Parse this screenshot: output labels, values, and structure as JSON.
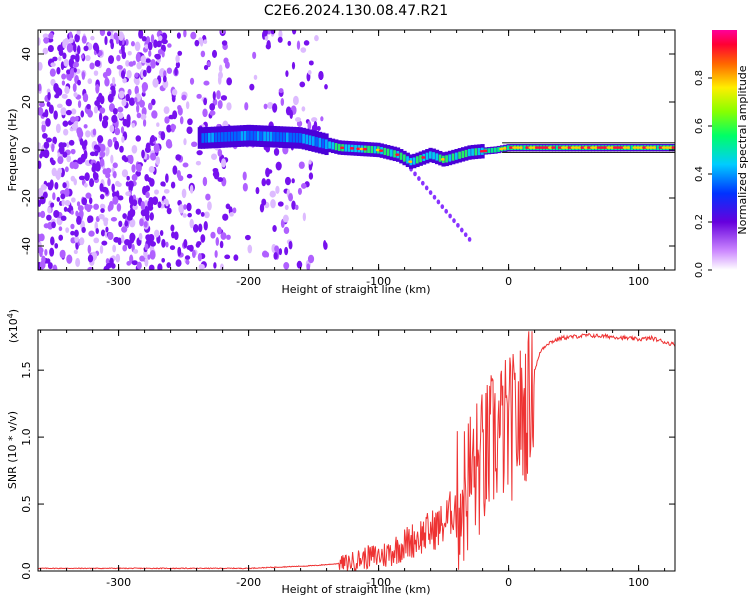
{
  "figure": {
    "title": "C2E6.2024.130.08.47.R21"
  },
  "chart_data": [
    {
      "type": "heatmap",
      "title": "C2E6.2024.130.08.47.R21",
      "xlabel": "Height of straight line (km)",
      "ylabel": "Frequency (Hz)",
      "xlim": [
        -362,
        128
      ],
      "ylim": [
        -50,
        50
      ],
      "xticks": [
        -300,
        -200,
        -100,
        0,
        100
      ],
      "xtick_labels": [
        "-300",
        "-200",
        "-100",
        "0",
        "100"
      ],
      "yticks": [
        -40,
        -20,
        0,
        20,
        40
      ],
      "ytick_labels": [
        "-40",
        "-20",
        "0",
        "20",
        "40"
      ],
      "colorbar": {
        "label": "Normalized spectral amplitude",
        "range": [
          0,
          1
        ],
        "ticks": [
          0,
          0.2,
          0.4,
          0.6,
          0.8
        ],
        "tick_labels": [
          "0.0",
          "0.2",
          "0.4",
          "0.6",
          "0.8"
        ]
      },
      "band_center_hz": [
        {
          "x": -235,
          "f": 5
        },
        {
          "x": -200,
          "f": 6
        },
        {
          "x": -160,
          "f": 5
        },
        {
          "x": -130,
          "f": 1
        },
        {
          "x": -100,
          "f": 0
        },
        {
          "x": -85,
          "f": -2
        },
        {
          "x": -75,
          "f": -5
        },
        {
          "x": -60,
          "f": -2
        },
        {
          "x": -50,
          "f": -4
        },
        {
          "x": -30,
          "f": -1
        },
        {
          "x": -10,
          "f": 0
        },
        {
          "x": 0,
          "f": 1
        },
        {
          "x": 128,
          "f": 1
        }
      ],
      "noise_region_x": [
        -362,
        -140
      ]
    },
    {
      "type": "line",
      "xlabel": "Height of straight line (km)",
      "ylabel": "SNR (10 * v/v)",
      "y_multiplier": "(x10",
      "y_multiplier_exp": "4",
      "y_multiplier_close": ")",
      "xlim": [
        -362,
        128
      ],
      "ylim": [
        0,
        1.8
      ],
      "xticks": [
        -300,
        -200,
        -100,
        0,
        100
      ],
      "xtick_labels": [
        "-300",
        "-200",
        "-100",
        "0",
        "100"
      ],
      "yticks": [
        0,
        0.5,
        1.0,
        1.5
      ],
      "ytick_labels": [
        "0.0",
        "0.5",
        "1.0",
        "1.5"
      ],
      "color": "#ee3333",
      "series": [
        {
          "name": "SNR",
          "x": [
            -362,
            -200,
            -150,
            -125,
            -110,
            -95,
            -80,
            -70,
            -60,
            -50,
            -40,
            -35,
            -30,
            -25,
            -20,
            -15,
            -10,
            -5,
            0,
            5,
            10,
            15,
            20,
            25,
            30,
            40,
            60,
            80,
            100,
            110,
            120,
            128
          ],
          "y": [
            0.02,
            0.02,
            0.04,
            0.06,
            0.1,
            0.12,
            0.2,
            0.25,
            0.3,
            0.35,
            0.5,
            0.55,
            0.7,
            0.75,
            0.8,
            0.9,
            1.0,
            1.05,
            1.05,
            1.1,
            1.15,
            1.25,
            1.5,
            1.65,
            1.7,
            1.74,
            1.76,
            1.75,
            1.73,
            1.74,
            1.71,
            1.69
          ]
        }
      ]
    }
  ]
}
